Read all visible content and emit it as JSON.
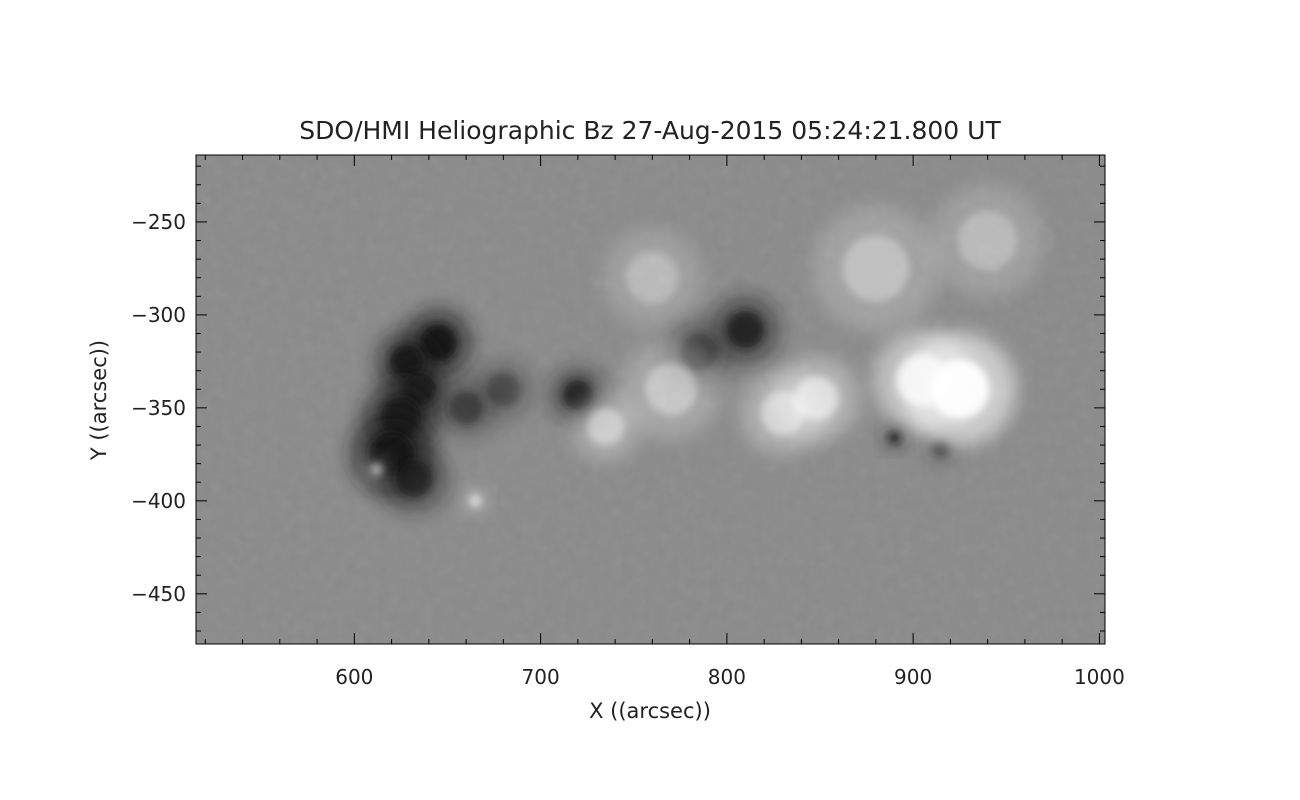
{
  "chart_data": {
    "type": "heatmap",
    "title": "SDO/HMI Heliographic Bz 27-Aug-2015 05:24:21.800 UT",
    "xlabel": "X ((arcsec))",
    "ylabel": "Y ((arcsec))",
    "xlim": [
      515,
      1003
    ],
    "ylim": [
      -477,
      -214
    ],
    "x_ticks": [
      {
        "value": 600,
        "label": "600"
      },
      {
        "value": 700,
        "label": "700"
      },
      {
        "value": 800,
        "label": "800"
      },
      {
        "value": 900,
        "label": "900"
      },
      {
        "value": 1000,
        "label": "1000"
      }
    ],
    "y_ticks": [
      {
        "value": -250,
        "label": "−250"
      },
      {
        "value": -300,
        "label": "−300"
      },
      {
        "value": -350,
        "label": "−350"
      },
      {
        "value": -400,
        "label": "−400"
      },
      {
        "value": -450,
        "label": "−450"
      }
    ],
    "x_minor_step": 20,
    "y_minor_step": 10,
    "colormap": "grayscale",
    "colors": {
      "background": "#8a8a8a",
      "negative": "#141414",
      "positive": "#ffffff"
    },
    "features": {
      "negative_spots": [
        {
          "x": 645,
          "y": -315,
          "strength": 1.0,
          "r": 10
        },
        {
          "x": 628,
          "y": -325,
          "strength": 0.9,
          "r": 9
        },
        {
          "x": 635,
          "y": -340,
          "strength": 0.8,
          "r": 9
        },
        {
          "x": 625,
          "y": -355,
          "strength": 0.9,
          "r": 11
        },
        {
          "x": 620,
          "y": -375,
          "strength": 1.0,
          "r": 12
        },
        {
          "x": 632,
          "y": -388,
          "strength": 0.7,
          "r": 10
        },
        {
          "x": 660,
          "y": -350,
          "strength": 0.5,
          "r": 9
        },
        {
          "x": 680,
          "y": -340,
          "strength": 0.4,
          "r": 9
        },
        {
          "x": 720,
          "y": -343,
          "strength": 0.8,
          "r": 8
        },
        {
          "x": 810,
          "y": -308,
          "strength": 0.8,
          "r": 10
        },
        {
          "x": 785,
          "y": -320,
          "strength": 0.5,
          "r": 10
        },
        {
          "x": 890,
          "y": -366,
          "strength": 0.9,
          "r": 3
        },
        {
          "x": 915,
          "y": -372,
          "strength": 0.5,
          "r": 4
        }
      ],
      "positive_spots": [
        {
          "x": 925,
          "y": -340,
          "strength": 1.0,
          "r": 16
        },
        {
          "x": 905,
          "y": -335,
          "strength": 0.8,
          "r": 14
        },
        {
          "x": 848,
          "y": -345,
          "strength": 0.6,
          "r": 12
        },
        {
          "x": 830,
          "y": -353,
          "strength": 0.5,
          "r": 12
        },
        {
          "x": 770,
          "y": -340,
          "strength": 0.4,
          "r": 14
        },
        {
          "x": 735,
          "y": -360,
          "strength": 0.45,
          "r": 10
        },
        {
          "x": 760,
          "y": -280,
          "strength": 0.3,
          "r": 14
        },
        {
          "x": 880,
          "y": -275,
          "strength": 0.35,
          "r": 18
        },
        {
          "x": 940,
          "y": -260,
          "strength": 0.3,
          "r": 16
        },
        {
          "x": 665,
          "y": -400,
          "strength": 0.7,
          "r": 3
        },
        {
          "x": 612,
          "y": -383,
          "strength": 0.6,
          "r": 3
        }
      ]
    }
  }
}
